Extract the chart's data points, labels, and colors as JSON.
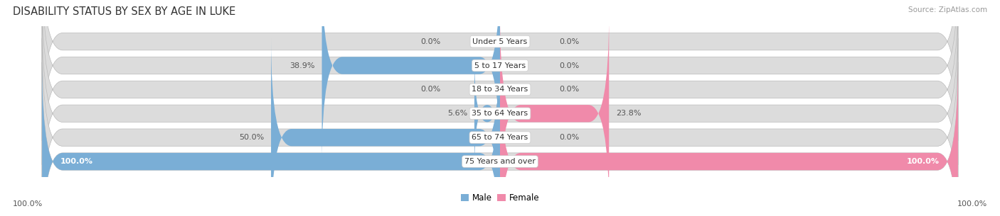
{
  "title": "DISABILITY STATUS BY SEX BY AGE IN LUKE",
  "source": "Source: ZipAtlas.com",
  "categories": [
    "Under 5 Years",
    "5 to 17 Years",
    "18 to 34 Years",
    "35 to 64 Years",
    "65 to 74 Years",
    "75 Years and over"
  ],
  "male_values": [
    0.0,
    38.9,
    0.0,
    5.6,
    50.0,
    100.0
  ],
  "female_values": [
    0.0,
    0.0,
    0.0,
    23.8,
    0.0,
    100.0
  ],
  "male_color": "#7aaed6",
  "female_color": "#f08aaa",
  "bar_bg_color": "#dcdcdc",
  "bar_bg_border": "#c8c8c8",
  "max_value": 100.0,
  "title_fontsize": 10.5,
  "label_fontsize": 8.0,
  "source_fontsize": 7.5,
  "category_fontsize": 8.0
}
